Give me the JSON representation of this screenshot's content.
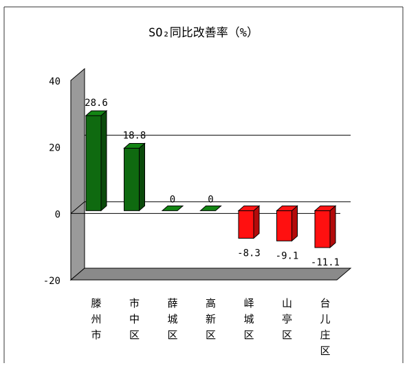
{
  "chart_data": {
    "type": "bar",
    "title": "SO₂同比改善率（%）",
    "categories": [
      "滕州市",
      "市中区",
      "薛城区",
      "高新区",
      "峄城区",
      "山亭区",
      "台儿庄区"
    ],
    "values": [
      28.6,
      18.8,
      0,
      0,
      -8.3,
      -9.1,
      -11.1
    ],
    "value_labels": [
      "28.6",
      "18.8",
      "0",
      "0",
      "-8.3",
      "-9.1",
      "-11.1"
    ],
    "yticks": [
      "40",
      "20",
      "0",
      "-20"
    ],
    "ylim": [
      -20,
      40
    ],
    "grid": true,
    "legend": "none",
    "style_3d": true,
    "colors": {
      "positive": "#0f6a10",
      "negative": "#ff1010",
      "wall": "#ffffff",
      "floor": "#8a8a8a",
      "side_wall": "#9a9a9a"
    }
  }
}
